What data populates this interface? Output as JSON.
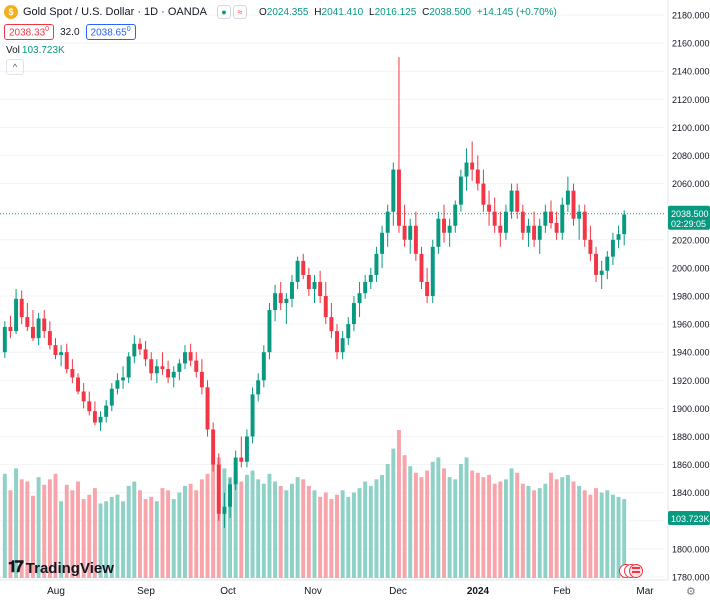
{
  "header": {
    "logo_glyph": "$",
    "symbol": "Gold Spot / U.S. Dollar · 1D · OANDA",
    "open_label": "O",
    "open": "2024.355",
    "high_label": "H",
    "high": "2041.410",
    "low_label": "L",
    "low": "2016.125",
    "close_label": "C",
    "close": "2038.500",
    "change": "+14.145 (+0.70%)"
  },
  "trade": {
    "sell": "2038.33",
    "sell_sup": "0",
    "spread": "32.0",
    "buy": "2038.65",
    "buy_sup": "0"
  },
  "volume": {
    "label": "Vol",
    "value": "103.723K"
  },
  "branding": {
    "name": "TradingView"
  },
  "price_axis": {
    "ticks": [
      "2180.000",
      "2160.000",
      "2140.000",
      "2120.000",
      "2100.000",
      "2080.000",
      "2060.000",
      "2040.000",
      "2020.000",
      "2000.000",
      "1980.000",
      "1960.000",
      "1940.000",
      "1920.000",
      "1900.000",
      "1880.000",
      "1860.000",
      "1840.000",
      "1820.000",
      "1800.000",
      "1780.000"
    ],
    "last_price": "2038.500",
    "countdown": "02:29:05",
    "volume_badge": "103.723K"
  },
  "time_axis": {
    "ticks": [
      "Aug",
      "Sep",
      "Oct",
      "Nov",
      "Dec",
      "2024",
      "Feb",
      "Mar"
    ]
  },
  "colors": {
    "up": "#089981",
    "down": "#f23645",
    "up_vol": "#8ed1c7",
    "down_vol": "#f7a5aa",
    "buy": "#2962ff"
  },
  "icons": {
    "gear": "gear-icon",
    "collapse": "chevron-up-icon",
    "flag": "market-flag-icon"
  },
  "chart_data": {
    "type": "candlestick",
    "title": "Gold Spot / U.S. Dollar · 1D · OANDA",
    "xlabel": "",
    "ylabel": "",
    "ylim": [
      1780,
      2180
    ],
    "x_tick_labels": [
      "Aug",
      "Sep",
      "Oct",
      "Nov",
      "Dec",
      "2024",
      "Feb",
      "Mar"
    ],
    "candles_ohlcv": [
      [
        1940,
        1962,
        1936,
        1958,
        95
      ],
      [
        1958,
        1966,
        1950,
        1955,
        80
      ],
      [
        1955,
        1985,
        1953,
        1978,
        100
      ],
      [
        1978,
        1984,
        1960,
        1965,
        90
      ],
      [
        1965,
        1975,
        1955,
        1958,
        88
      ],
      [
        1958,
        1970,
        1948,
        1950,
        75
      ],
      [
        1950,
        1968,
        1945,
        1964,
        92
      ],
      [
        1964,
        1970,
        1950,
        1955,
        85
      ],
      [
        1955,
        1962,
        1942,
        1945,
        90
      ],
      [
        1945,
        1950,
        1935,
        1938,
        95
      ],
      [
        1938,
        1945,
        1930,
        1940,
        70
      ],
      [
        1940,
        1946,
        1925,
        1928,
        85
      ],
      [
        1928,
        1935,
        1918,
        1922,
        80
      ],
      [
        1922,
        1925,
        1910,
        1912,
        88
      ],
      [
        1912,
        1918,
        1900,
        1905,
        72
      ],
      [
        1905,
        1912,
        1895,
        1898,
        76
      ],
      [
        1898,
        1905,
        1888,
        1890,
        82
      ],
      [
        1890,
        1898,
        1884,
        1894,
        68
      ],
      [
        1894,
        1906,
        1890,
        1902,
        70
      ],
      [
        1902,
        1918,
        1898,
        1914,
        74
      ],
      [
        1914,
        1925,
        1910,
        1920,
        76
      ],
      [
        1920,
        1930,
        1914,
        1922,
        70
      ],
      [
        1922,
        1940,
        1918,
        1937,
        84
      ],
      [
        1937,
        1952,
        1932,
        1946,
        88
      ],
      [
        1946,
        1950,
        1938,
        1942,
        80
      ],
      [
        1942,
        1948,
        1930,
        1935,
        72
      ],
      [
        1935,
        1940,
        1920,
        1925,
        74
      ],
      [
        1925,
        1935,
        1918,
        1930,
        70
      ],
      [
        1930,
        1940,
        1924,
        1928,
        82
      ],
      [
        1928,
        1934,
        1918,
        1922,
        80
      ],
      [
        1922,
        1930,
        1915,
        1926,
        72
      ],
      [
        1926,
        1935,
        1920,
        1932,
        78
      ],
      [
        1932,
        1945,
        1928,
        1940,
        84
      ],
      [
        1940,
        1946,
        1930,
        1934,
        86
      ],
      [
        1934,
        1940,
        1922,
        1926,
        80
      ],
      [
        1926,
        1935,
        1910,
        1915,
        90
      ],
      [
        1915,
        1920,
        1880,
        1885,
        95
      ],
      [
        1885,
        1890,
        1855,
        1860,
        105
      ],
      [
        1860,
        1868,
        1820,
        1825,
        110
      ],
      [
        1825,
        1840,
        1815,
        1830,
        100
      ],
      [
        1830,
        1850,
        1822,
        1846,
        92
      ],
      [
        1846,
        1870,
        1842,
        1865,
        96
      ],
      [
        1865,
        1880,
        1858,
        1862,
        88
      ],
      [
        1862,
        1885,
        1858,
        1880,
        94
      ],
      [
        1880,
        1915,
        1875,
        1910,
        98
      ],
      [
        1910,
        1925,
        1905,
        1920,
        90
      ],
      [
        1920,
        1945,
        1915,
        1940,
        86
      ],
      [
        1940,
        1975,
        1935,
        1970,
        95
      ],
      [
        1970,
        1988,
        1962,
        1982,
        88
      ],
      [
        1982,
        1990,
        1970,
        1975,
        84
      ],
      [
        1975,
        1982,
        1960,
        1978,
        80
      ],
      [
        1978,
        1995,
        1972,
        1990,
        86
      ],
      [
        1990,
        2008,
        1985,
        2005,
        92
      ],
      [
        2005,
        2010,
        1992,
        1995,
        90
      ],
      [
        1995,
        2000,
        1980,
        1985,
        84
      ],
      [
        1985,
        1995,
        1975,
        1990,
        80
      ],
      [
        1990,
        1998,
        1975,
        1980,
        74
      ],
      [
        1980,
        1990,
        1960,
        1965,
        78
      ],
      [
        1965,
        1975,
        1950,
        1955,
        72
      ],
      [
        1955,
        1960,
        1935,
        1940,
        76
      ],
      [
        1940,
        1955,
        1935,
        1950,
        80
      ],
      [
        1950,
        1965,
        1945,
        1960,
        74
      ],
      [
        1960,
        1980,
        1955,
        1975,
        78
      ],
      [
        1975,
        1990,
        1965,
        1982,
        82
      ],
      [
        1982,
        1995,
        1978,
        1990,
        88
      ],
      [
        1990,
        2000,
        1985,
        1995,
        84
      ],
      [
        1995,
        2015,
        1990,
        2010,
        90
      ],
      [
        2010,
        2030,
        2000,
        2025,
        94
      ],
      [
        2025,
        2045,
        2015,
        2040,
        104
      ],
      [
        2040,
        2075,
        2030,
        2070,
        118
      ],
      [
        2070,
        2150,
        2025,
        2030,
        135
      ],
      [
        2030,
        2045,
        2015,
        2020,
        112
      ],
      [
        2020,
        2035,
        2010,
        2030,
        102
      ],
      [
        2030,
        2040,
        2005,
        2010,
        96
      ],
      [
        2010,
        2015,
        1985,
        1990,
        92
      ],
      [
        1990,
        2000,
        1975,
        1980,
        98
      ],
      [
        1980,
        2020,
        1975,
        2015,
        106
      ],
      [
        2015,
        2040,
        2010,
        2035,
        110
      ],
      [
        2035,
        2045,
        2018,
        2025,
        100
      ],
      [
        2025,
        2035,
        2015,
        2030,
        92
      ],
      [
        2030,
        2048,
        2025,
        2045,
        90
      ],
      [
        2045,
        2070,
        2040,
        2065,
        104
      ],
      [
        2065,
        2085,
        2055,
        2075,
        110
      ],
      [
        2075,
        2090,
        2062,
        2070,
        98
      ],
      [
        2070,
        2080,
        2055,
        2060,
        96
      ],
      [
        2060,
        2070,
        2040,
        2045,
        92
      ],
      [
        2045,
        2055,
        2030,
        2040,
        94
      ],
      [
        2040,
        2050,
        2025,
        2030,
        86
      ],
      [
        2030,
        2040,
        2015,
        2025,
        88
      ],
      [
        2025,
        2045,
        2020,
        2040,
        90
      ],
      [
        2040,
        2060,
        2035,
        2055,
        100
      ],
      [
        2055,
        2060,
        2035,
        2040,
        96
      ],
      [
        2040,
        2045,
        2020,
        2025,
        86
      ],
      [
        2025,
        2035,
        2015,
        2030,
        84
      ],
      [
        2030,
        2040,
        2015,
        2020,
        80
      ],
      [
        2020,
        2035,
        2010,
        2030,
        82
      ],
      [
        2030,
        2045,
        2025,
        2040,
        86
      ],
      [
        2040,
        2048,
        2028,
        2032,
        96
      ],
      [
        2032,
        2040,
        2020,
        2025,
        90
      ],
      [
        2025,
        2050,
        2020,
        2045,
        92
      ],
      [
        2045,
        2065,
        2040,
        2055,
        94
      ],
      [
        2055,
        2060,
        2030,
        2035,
        88
      ],
      [
        2035,
        2045,
        2020,
        2040,
        84
      ],
      [
        2040,
        2045,
        2015,
        2020,
        80
      ],
      [
        2020,
        2030,
        2005,
        2010,
        76
      ],
      [
        2010,
        2015,
        1990,
        1995,
        82
      ],
      [
        1995,
        2005,
        1985,
        1998,
        78
      ],
      [
        1998,
        2012,
        1992,
        2008,
        80
      ],
      [
        2008,
        2025,
        2002,
        2020,
        76
      ],
      [
        2020,
        2030,
        2014,
        2024,
        74
      ],
      [
        2024,
        2041,
        2016,
        2038,
        72
      ]
    ]
  }
}
